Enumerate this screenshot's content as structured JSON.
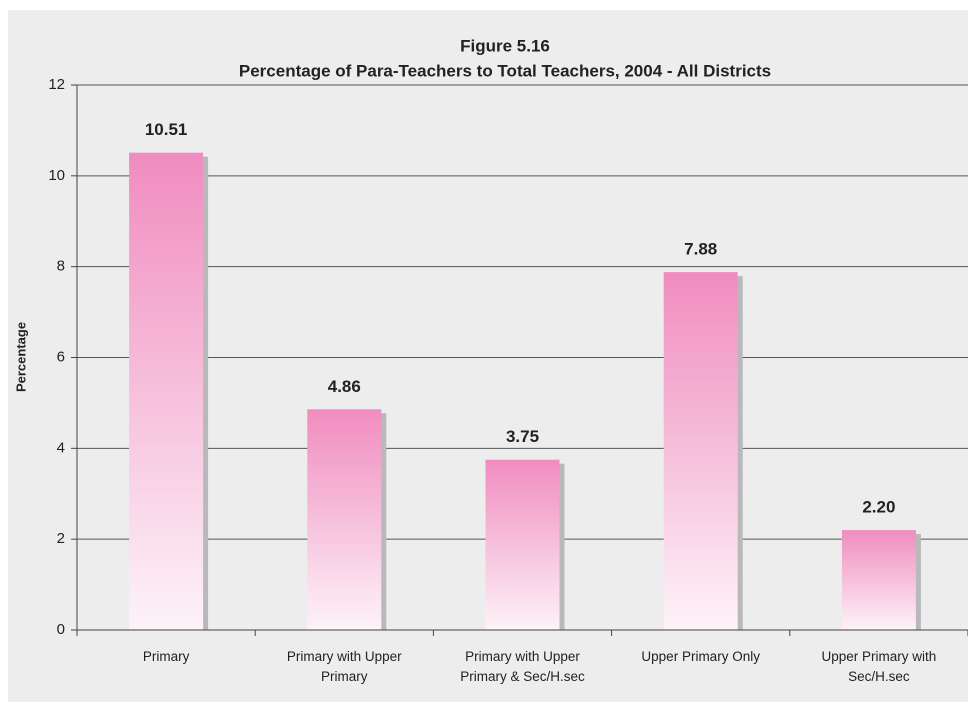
{
  "chart_data": {
    "type": "bar",
    "title": "Figure 5.16",
    "subtitle": "Percentage of Para-Teachers to Total Teachers, 2004 - All Districts",
    "y_label": "Percentage",
    "categories": [
      "Primary",
      "Primary with Upper Primary",
      "Primary with Upper Primary & Sec/H.sec",
      "Upper Primary Only",
      "Upper Primary with Sec/H.sec"
    ],
    "values": [
      10.51,
      4.86,
      3.75,
      7.88,
      2.2
    ],
    "value_labels": [
      "10.51",
      "4.86",
      "3.75",
      "7.88",
      "2.20"
    ],
    "color": "#f08cbf",
    "ylim": [
      0,
      12
    ],
    "yticks": [
      0,
      2,
      4,
      6,
      8,
      10,
      12
    ],
    "grid": true
  }
}
